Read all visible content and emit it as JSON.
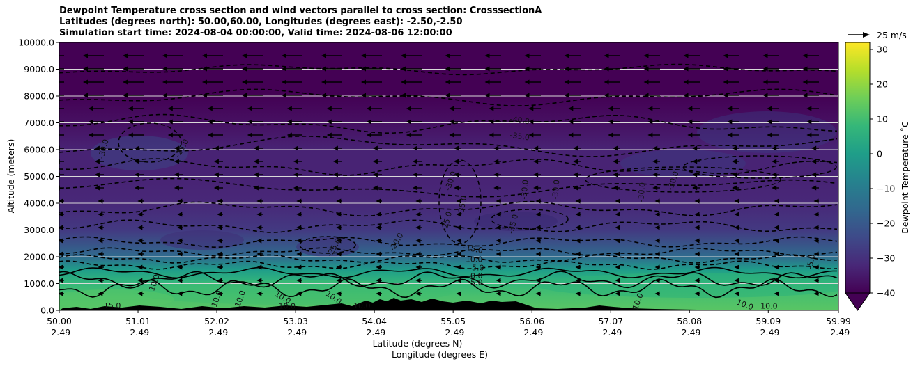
{
  "chart_data": {
    "type": "heatmap",
    "title_lines": [
      "Dewpoint Temperature cross section and wind vectors parallel to cross section: CrosssectionA",
      "Latitudes (degrees north): 50.00,60.00, Longitudes (degrees east): -2.50,-2.50",
      "Simulation start time: 2024-08-04 00:00:00, Valid time: 2024-08-06 12:00:00"
    ],
    "xlabel_lines": [
      "Latitude (degrees N)",
      "Longitude (degrees E)"
    ],
    "ylabel": "Altitude (meters)",
    "x_range": [
      50.0,
      59.99
    ],
    "y_range": [
      0,
      10000
    ],
    "x_tick_lat": [
      "50.00",
      "51.01",
      "52.02",
      "53.03",
      "54.04",
      "55.05",
      "56.06",
      "57.07",
      "58.08",
      "59.09",
      "59.99"
    ],
    "x_tick_lon": [
      "-2.49",
      "-2.49",
      "-2.49",
      "-2.49",
      "-2.49",
      "-2.49",
      "-2.49",
      "-2.49",
      "-2.49",
      "-2.49",
      "-2.49"
    ],
    "y_ticks": [
      0,
      1000,
      2000,
      3000,
      4000,
      5000,
      6000,
      7000,
      8000,
      9000,
      10000
    ],
    "y_tick_labels": [
      "0.0",
      "1000.0",
      "2000.0",
      "3000.0",
      "4000.0",
      "5000.0",
      "6000.0",
      "7000.0",
      "8000.0",
      "9000.0",
      "10000.0"
    ],
    "grid": "horizontal",
    "colorbar": {
      "label": "Dewpoint Temperature ˚C",
      "range": [
        -40,
        32
      ],
      "ticks": [
        -40,
        -30,
        -20,
        -10,
        0,
        10,
        20,
        30
      ],
      "tick_labels": [
        "−40",
        "−30",
        "−20",
        "−10",
        "0",
        "10",
        "20",
        "30"
      ],
      "colormap": [
        "#440154",
        "#482878",
        "#3e4a89",
        "#31688e",
        "#26828e",
        "#1f9e89",
        "#35b779",
        "#6ece58",
        "#b5de2b",
        "#fde725"
      ]
    },
    "wind_key": {
      "label": "25 m/s",
      "speed_ms": 25
    },
    "dewpoint_profile": [
      {
        "alt": 0,
        "value": 13
      },
      {
        "alt": 500,
        "value": 11
      },
      {
        "alt": 1000,
        "value": 8
      },
      {
        "alt": 1500,
        "value": 0
      },
      {
        "alt": 2000,
        "value": -15
      },
      {
        "alt": 3000,
        "value": -28
      },
      {
        "alt": 4000,
        "value": -32
      },
      {
        "alt": 5000,
        "value": -33
      },
      {
        "alt": 6000,
        "value": -33
      },
      {
        "alt": 7000,
        "value": -37
      },
      {
        "alt": 8000,
        "value": -40
      },
      {
        "alt": 10000,
        "value": -43
      }
    ],
    "contour_labels": [
      {
        "text": "-30.0",
        "lat": 50.6,
        "alt": 6000,
        "rot": -75
      },
      {
        "text": "-25.0",
        "lat": 51.6,
        "alt": 6000,
        "rot": -60
      },
      {
        "text": "-40.0",
        "lat": 55.9,
        "alt": 7000,
        "rot": 8
      },
      {
        "text": "-35.0",
        "lat": 55.9,
        "alt": 6400,
        "rot": 8
      },
      {
        "text": "-30.0",
        "lat": 55.05,
        "alt": 4800,
        "rot": -70
      },
      {
        "text": "-35.0",
        "lat": 55.2,
        "alt": 3900,
        "rot": -80
      },
      {
        "text": "-30.0",
        "lat": 56.0,
        "alt": 4500,
        "rot": -85
      },
      {
        "text": "-30.0",
        "lat": 56.4,
        "alt": 4500,
        "rot": -85
      },
      {
        "text": "-25.0",
        "lat": 55.0,
        "alt": 3300,
        "rot": -75
      },
      {
        "text": "-35.0",
        "lat": 55.85,
        "alt": 3200,
        "rot": -75
      },
      {
        "text": "-25.0",
        "lat": 53.55,
        "alt": 2300,
        "rot": -60
      },
      {
        "text": "-20.0",
        "lat": 54.35,
        "alt": 2500,
        "rot": -60
      },
      {
        "text": "-30.0",
        "lat": 57.5,
        "alt": 4400,
        "rot": -85
      },
      {
        "text": "-30.0",
        "lat": 57.9,
        "alt": 4800,
        "rot": -70
      },
      {
        "text": "-15.0",
        "lat": 55.3,
        "alt": 2200,
        "rot": 10
      },
      {
        "text": "-10.0",
        "lat": 55.3,
        "alt": 1800,
        "rot": 0
      },
      {
        "text": "-5.0",
        "lat": 55.35,
        "alt": 1500,
        "rot": 0
      },
      {
        "text": "0.0",
        "lat": 55.35,
        "alt": 1200,
        "rot": 0
      },
      {
        "text": "5.0",
        "lat": 55.35,
        "alt": 950,
        "rot": 0
      },
      {
        "text": "10.0",
        "lat": 51.25,
        "alt": 1000,
        "rot": -70
      },
      {
        "text": "10.0",
        "lat": 52.05,
        "alt": 400,
        "rot": -70
      },
      {
        "text": "10.0",
        "lat": 52.35,
        "alt": 400,
        "rot": -70
      },
      {
        "text": "10.0",
        "lat": 52.85,
        "alt": 400,
        "rot": 30
      },
      {
        "text": "10.0",
        "lat": 53.5,
        "alt": 400,
        "rot": 35
      },
      {
        "text": "10.0",
        "lat": 52.92,
        "alt": 60,
        "rot": 0
      },
      {
        "text": "10.0",
        "lat": 53.88,
        "alt": 80,
        "rot": 0
      },
      {
        "text": "15.0",
        "lat": 50.68,
        "alt": 80,
        "rot": 0
      },
      {
        "text": "10.0",
        "lat": 57.45,
        "alt": 300,
        "rot": -70
      },
      {
        "text": "10.0",
        "lat": 58.78,
        "alt": 120,
        "rot": 20
      },
      {
        "text": "10.0",
        "lat": 59.1,
        "alt": 60,
        "rot": 0
      },
      {
        "text": "-5.0",
        "lat": 59.67,
        "alt": 1800,
        "rot": -80
      }
    ]
  }
}
